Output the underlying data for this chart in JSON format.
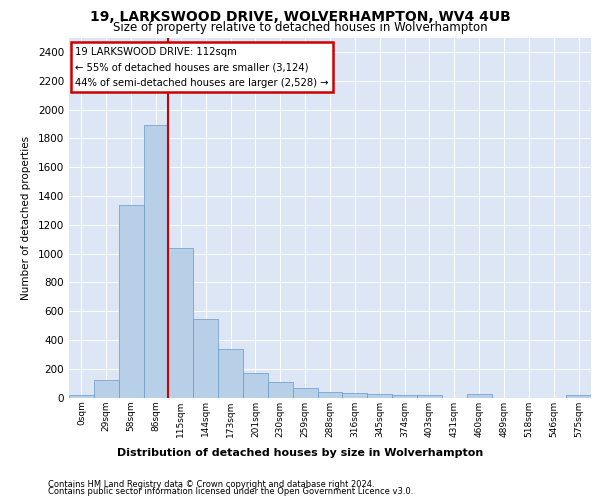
{
  "title1": "19, LARKSWOOD DRIVE, WOLVERHAMPTON, WV4 4UB",
  "title2": "Size of property relative to detached houses in Wolverhampton",
  "xlabel": "Distribution of detached houses by size in Wolverhampton",
  "ylabel": "Number of detached properties",
  "footer1": "Contains HM Land Registry data © Crown copyright and database right 2024.",
  "footer2": "Contains public sector information licensed under the Open Government Licence v3.0.",
  "annotation_title": "19 LARKSWOOD DRIVE: 112sqm",
  "annotation_line1": "← 55% of detached houses are smaller (3,124)",
  "annotation_line2": "44% of semi-detached houses are larger (2,528) →",
  "bar_labels": [
    "0sqm",
    "29sqm",
    "58sqm",
    "86sqm",
    "115sqm",
    "144sqm",
    "173sqm",
    "201sqm",
    "230sqm",
    "259sqm",
    "288sqm",
    "316sqm",
    "345sqm",
    "374sqm",
    "403sqm",
    "431sqm",
    "460sqm",
    "489sqm",
    "518sqm",
    "546sqm",
    "575sqm"
  ],
  "bar_values": [
    15,
    125,
    1340,
    1890,
    1040,
    545,
    335,
    170,
    110,
    65,
    40,
    30,
    25,
    20,
    15,
    0,
    25,
    0,
    0,
    0,
    15
  ],
  "bar_color": "#b8cfe8",
  "bar_edge_color": "#6699cc",
  "vline_position": 3.5,
  "vline_color": "#cc0000",
  "annotation_edge_color": "#cc0000",
  "plot_bg_color": "#dce6f5",
  "ylim_max": 2500,
  "ytick_max": 2400,
  "ytick_step": 200,
  "fig_width": 6.0,
  "fig_height": 5.0,
  "dpi": 100
}
